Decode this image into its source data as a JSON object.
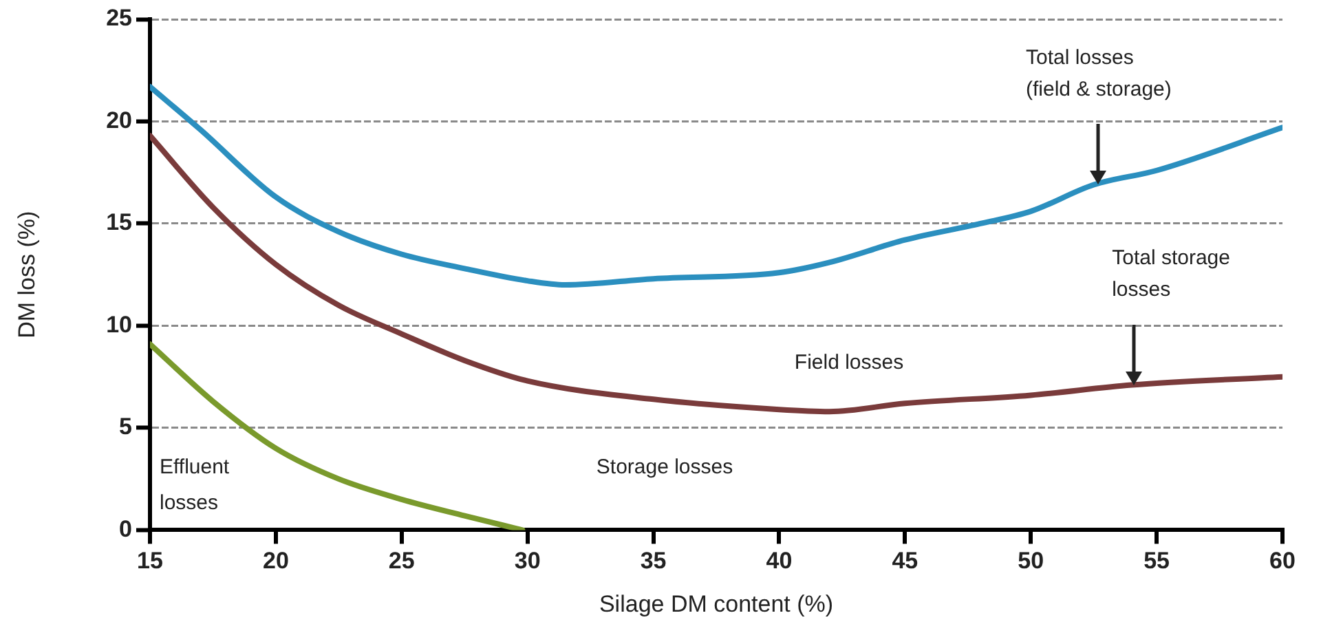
{
  "chart_data": {
    "type": "line",
    "xlabel": "Silage DM content (%)",
    "ylabel": "DM loss (%)",
    "xlim": [
      15,
      60
    ],
    "xticks": [
      15,
      20,
      25,
      30,
      35,
      40,
      45,
      50,
      55,
      60
    ],
    "ylim": [
      0,
      25
    ],
    "yticks": [
      0,
      5,
      10,
      15,
      20,
      25
    ],
    "grid": "y",
    "marker": "none",
    "line_style": "solid",
    "series": [
      {
        "color": "#2b8fbf",
        "x": [
          15,
          17,
          20,
          22.5,
          25,
          27.5,
          30,
          31.5,
          35,
          40,
          42,
          45,
          48,
          50,
          52.5,
          55,
          60
        ],
        "values": [
          21.7,
          19.6,
          16.3,
          14.6,
          13.5,
          12.8,
          12.2,
          12.0,
          12.3,
          12.6,
          13.1,
          14.2,
          15.0,
          15.6,
          16.9,
          17.6,
          19.7
        ]
      },
      {
        "color": "#7a3b3b",
        "x": [
          15,
          17.5,
          20,
          22.5,
          25,
          27.5,
          30,
          35,
          40,
          42,
          45,
          50,
          54,
          60
        ],
        "values": [
          19.3,
          15.8,
          13.0,
          11.0,
          9.6,
          8.3,
          7.3,
          6.4,
          5.9,
          5.8,
          6.2,
          6.6,
          7.1,
          7.5
        ]
      },
      {
        "color": "#7a9a2c",
        "x": [
          15,
          17.5,
          20,
          22.5,
          25,
          27.5,
          29.8
        ],
        "values": [
          9.1,
          6.3,
          4.0,
          2.5,
          1.5,
          0.7,
          0
        ]
      }
    ],
    "annotations": [
      {
        "text": "Total losses\n(field & storage)",
        "x": 52.7,
        "y": 16.9
      },
      {
        "text": "Total storage\nlosses",
        "x": 54.1,
        "y": 7.1
      },
      "Field losses",
      "Storage losses",
      "Effluent\nlosses"
    ]
  }
}
